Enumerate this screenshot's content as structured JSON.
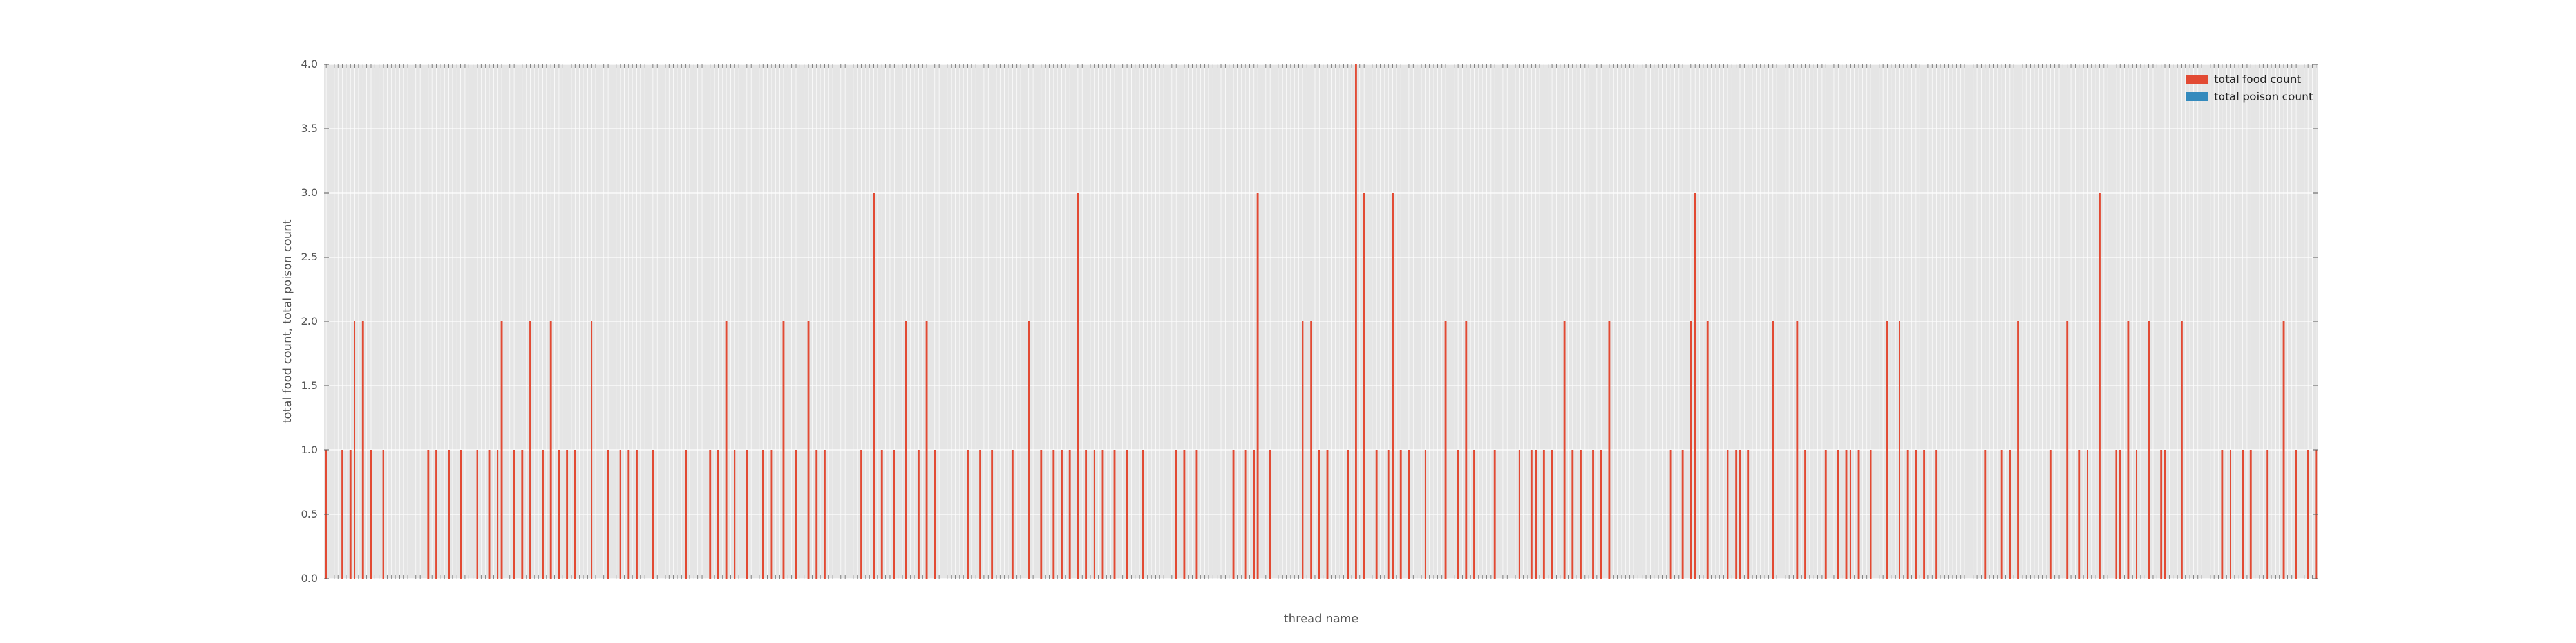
{
  "chart_data": {
    "type": "bar",
    "xlabel": "thread name",
    "ylabel": "total food count, total poison count",
    "ylim": [
      0,
      4.0
    ],
    "yticks": [
      "0.0",
      "0.5",
      "1.0",
      "1.5",
      "2.0",
      "2.5",
      "3.0",
      "3.5",
      "4.0"
    ],
    "grid": true,
    "legend_position": "top-right",
    "series": [
      {
        "name": "total food count",
        "color": "#e24a33",
        "values": [
          1,
          0,
          0,
          0,
          1,
          0,
          1,
          2,
          0,
          2,
          0,
          1,
          0,
          0,
          1,
          0,
          0,
          0,
          0,
          0,
          0,
          0,
          0,
          0,
          0,
          1,
          0,
          1,
          0,
          0,
          1,
          0,
          0,
          1,
          0,
          0,
          0,
          1,
          0,
          0,
          1,
          0,
          1,
          2,
          0,
          0,
          1,
          0,
          1,
          0,
          2,
          0,
          0,
          1,
          0,
          2,
          0,
          1,
          0,
          1,
          0,
          1,
          0,
          0,
          0,
          2,
          0,
          0,
          0,
          1,
          0,
          0,
          1,
          0,
          1,
          0,
          1,
          0,
          0,
          0,
          1,
          0,
          0,
          0,
          0,
          0,
          0,
          0,
          1,
          0,
          0,
          0,
          0,
          0,
          1,
          0,
          1,
          0,
          2,
          0,
          1,
          0,
          0,
          1,
          0,
          0,
          0,
          1,
          0,
          1,
          0,
          0,
          2,
          0,
          0,
          1,
          0,
          0,
          2,
          0,
          1,
          0,
          1,
          0,
          0,
          0,
          0,
          0,
          0,
          0,
          0,
          1,
          0,
          0,
          3,
          0,
          1,
          0,
          0,
          1,
          0,
          0,
          2,
          0,
          0,
          1,
          0,
          2,
          0,
          1,
          0,
          0,
          0,
          0,
          0,
          0,
          0,
          1,
          0,
          0,
          1,
          0,
          0,
          1,
          0,
          0,
          0,
          0,
          1,
          0,
          0,
          0,
          2,
          0,
          0,
          1,
          0,
          0,
          1,
          0,
          1,
          0,
          1,
          0,
          3,
          0,
          1,
          0,
          1,
          0,
          1,
          0,
          0,
          1,
          0,
          0,
          1,
          0,
          0,
          0,
          1,
          0,
          0,
          0,
          0,
          0,
          0,
          0,
          1,
          0,
          1,
          0,
          0,
          1,
          0,
          0,
          0,
          0,
          0,
          0,
          0,
          0,
          1,
          0,
          0,
          1,
          0,
          1,
          3,
          0,
          0,
          1,
          0,
          0,
          0,
          0,
          0,
          0,
          0,
          2,
          0,
          2,
          0,
          1,
          0,
          1,
          0,
          0,
          0,
          0,
          1,
          0,
          4,
          0,
          3,
          0,
          0,
          1,
          0,
          0,
          1,
          3,
          0,
          1,
          0,
          1,
          0,
          0,
          0,
          1,
          0,
          0,
          0,
          0,
          2,
          0,
          0,
          1,
          0,
          2,
          0,
          1,
          0,
          0,
          0,
          0,
          1,
          0,
          0,
          0,
          0,
          0,
          1,
          0,
          0,
          1,
          1,
          0,
          1,
          0,
          1,
          0,
          0,
          2,
          0,
          1,
          0,
          1,
          0,
          0,
          1,
          0,
          1,
          0,
          2,
          0,
          0,
          0,
          0,
          0,
          0,
          0,
          0,
          0,
          0,
          0,
          0,
          0,
          0,
          1,
          0,
          0,
          1,
          0,
          2,
          3,
          0,
          0,
          2,
          0,
          0,
          0,
          0,
          1,
          0,
          1,
          1,
          0,
          1,
          0,
          0,
          0,
          0,
          0,
          2,
          0,
          0,
          0,
          0,
          0,
          2,
          0,
          1,
          0,
          0,
          0,
          0,
          1,
          0,
          0,
          1,
          0,
          1,
          1,
          0,
          1,
          0,
          0,
          1,
          0,
          0,
          0,
          2,
          0,
          0,
          2,
          0,
          1,
          0,
          1,
          0,
          1,
          0,
          0,
          1,
          0,
          0,
          0,
          0,
          0,
          0,
          0,
          0,
          0,
          0,
          0,
          1,
          0,
          0,
          0,
          1,
          0,
          1,
          0,
          2,
          0,
          0,
          0,
          0,
          0,
          0,
          0,
          1,
          0,
          0,
          0,
          2,
          0,
          0,
          1,
          0,
          1,
          0,
          0,
          3,
          0,
          0,
          0,
          1,
          1,
          0,
          2,
          0,
          1,
          0,
          0,
          2,
          0,
          0,
          1,
          1,
          0,
          0,
          0,
          2,
          0,
          0,
          0,
          0,
          0,
          0,
          0,
          0,
          0,
          1,
          0,
          1,
          0,
          0,
          1,
          0,
          1,
          0,
          0,
          0,
          1,
          0,
          0,
          0,
          2,
          0,
          0,
          1,
          0,
          0,
          1,
          0,
          1
        ]
      },
      {
        "name": "total poison count",
        "color": "#348abd",
        "values": []
      }
    ]
  }
}
